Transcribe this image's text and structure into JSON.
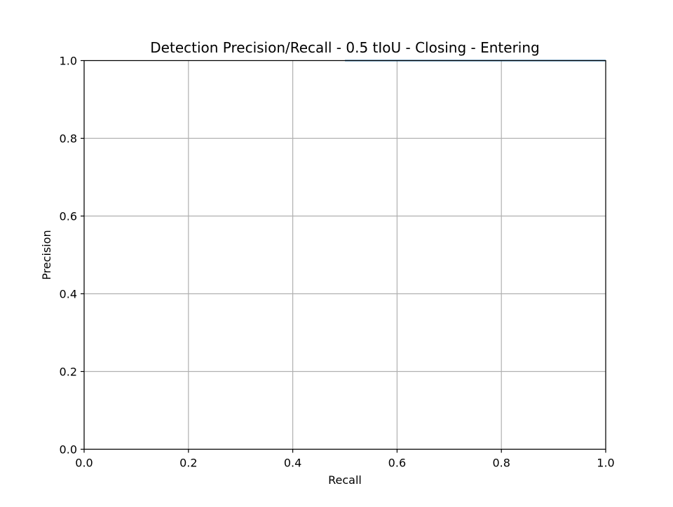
{
  "chart_data": {
    "type": "line",
    "title": "Detection Precision/Recall - 0.5 tIoU - Closing - Entering",
    "xlabel": "Recall",
    "ylabel": "Precision",
    "xlim": [
      0.0,
      1.0
    ],
    "ylim": [
      0.0,
      1.0
    ],
    "xticks": [
      "0.0",
      "0.2",
      "0.4",
      "0.6",
      "0.8",
      "1.0"
    ],
    "yticks": [
      "0.0",
      "0.2",
      "0.4",
      "0.6",
      "0.8",
      "1.0"
    ],
    "grid": true,
    "series": [
      {
        "color": "#1f77b4",
        "x": [
          0.5,
          1.0
        ],
        "y": [
          1.0,
          1.0
        ]
      }
    ]
  }
}
